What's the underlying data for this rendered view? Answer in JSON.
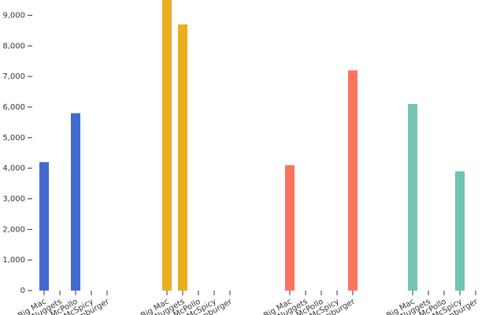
{
  "chart_data": {
    "type": "bar",
    "categories": [
      "Big Mac",
      "McNuggets",
      "McPollo",
      "McSpicy",
      "Hamburger"
    ],
    "series": [
      {
        "color": "#4169d0",
        "values": [
          4200,
          null,
          5800,
          null,
          null
        ]
      },
      {
        "color": "#eaae1e",
        "values": [
          9500,
          8700,
          null,
          null,
          null
        ]
      },
      {
        "color": "#fd735f",
        "values": [
          4100,
          null,
          null,
          null,
          7200
        ]
      },
      {
        "color": "#72c5b0",
        "values": [
          6100,
          null,
          null,
          3900,
          null
        ]
      }
    ],
    "ylim": [
      0,
      9500
    ],
    "yticks": [
      0,
      {
        "value": 1000,
        "label": "1,000"
      },
      {
        "value": 2000,
        "label": "2,000"
      },
      {
        "value": 3000,
        "label": "3,000"
      },
      {
        "value": 4000,
        "label": "4,000"
      },
      {
        "value": 5000,
        "label": "5,000"
      },
      {
        "value": 6000,
        "label": "6,000"
      },
      {
        "value": 7000,
        "label": "7,000"
      },
      {
        "value": 8000,
        "label": "8,000"
      },
      {
        "value": 9000,
        "label": "9,000"
      }
    ],
    "grid": false
  }
}
